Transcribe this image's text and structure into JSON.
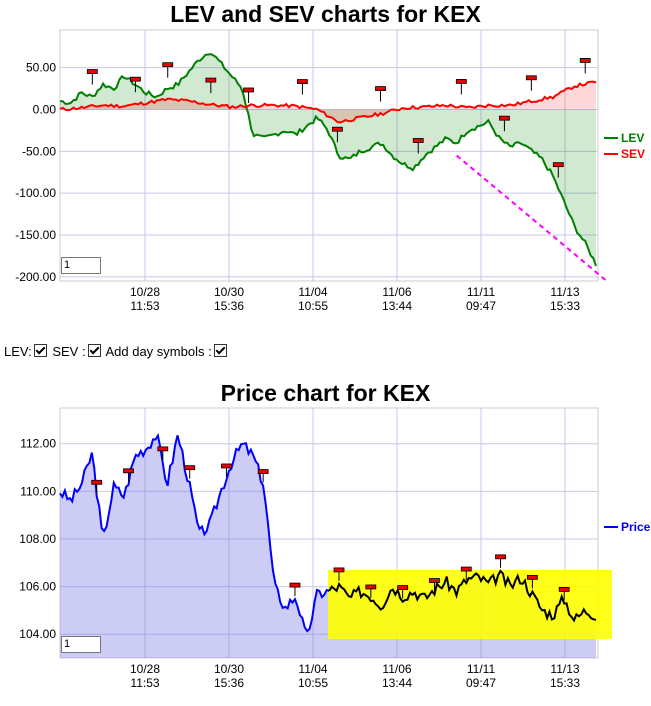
{
  "lev_title": "LEV and SEV charts for KEX",
  "price_title": "Price chart for KEX",
  "controls": {
    "lev_label": "LEV:",
    "sev_label": "SEV :",
    "day_label": "Add day symbols :"
  },
  "lev_zoom_value": "1",
  "price_zoom_value": "1",
  "colors": {
    "lev": "#008000",
    "sev": "#ff0000",
    "price": "#0000ff",
    "trend": "#ff00ff",
    "highlight": "#ffff00"
  },
  "chart_data": [
    {
      "type": "line",
      "title": "LEV and SEV charts for KEX",
      "ylim": [
        -205,
        95
      ],
      "y_ticks": [
        "50.00",
        "0.00",
        "-50.00",
        "-100.00",
        "-150.00",
        "-200.00"
      ],
      "y_tick_values": [
        50,
        0,
        -50,
        -100,
        -150,
        -200
      ],
      "x_ticks": [
        [
          "10/28",
          "11:53"
        ],
        [
          "10/30",
          "15:36"
        ],
        [
          "11/04",
          "10:55"
        ],
        [
          "11/06",
          "13:44"
        ],
        [
          "11/11",
          "09:47"
        ],
        [
          "11/13",
          "15:33"
        ]
      ],
      "legend": "right",
      "series": [
        {
          "name": "LEV",
          "x": [
            0,
            2,
            4,
            6,
            8,
            10,
            12,
            14,
            16,
            18,
            20,
            22,
            24,
            26,
            28,
            30,
            32,
            34,
            36,
            38,
            40,
            42,
            44,
            46,
            48,
            50,
            52,
            54,
            56,
            58,
            60,
            62,
            64,
            66,
            68,
            70,
            72,
            74,
            76,
            78,
            80,
            82,
            84,
            86,
            88,
            90,
            92,
            94,
            96,
            98,
            100
          ],
          "values": [
            10,
            8,
            20,
            15,
            30,
            25,
            40,
            30,
            20,
            15,
            25,
            30,
            45,
            60,
            70,
            55,
            40,
            25,
            -30,
            -35,
            -30,
            -25,
            -30,
            -20,
            -10,
            -25,
            -55,
            -60,
            -50,
            -45,
            -40,
            -55,
            -65,
            -70,
            -55,
            -45,
            -35,
            -40,
            -25,
            -20,
            -15,
            -35,
            -45,
            -40,
            -50,
            -60,
            -80,
            -110,
            -140,
            -160,
            -185
          ]
        },
        {
          "name": "SEV",
          "x": [
            0,
            4,
            8,
            12,
            16,
            20,
            24,
            28,
            32,
            36,
            40,
            44,
            48,
            52,
            56,
            60,
            64,
            68,
            72,
            76,
            80,
            84,
            88,
            92,
            96,
            100
          ],
          "values": [
            0,
            2,
            5,
            4,
            8,
            12,
            10,
            6,
            3,
            5,
            5,
            4,
            0,
            -15,
            -10,
            -5,
            2,
            3,
            5,
            2,
            5,
            5,
            10,
            15,
            28,
            33
          ]
        }
      ],
      "annotation": "dashed downward trendline on LEV"
    },
    {
      "type": "area",
      "title": "Price chart for KEX",
      "ylim": [
        103.0,
        113.5
      ],
      "y_ticks": [
        "112.00",
        "110.00",
        "108.00",
        "106.00",
        "104.00"
      ],
      "y_tick_values": [
        112,
        110,
        108,
        106,
        104
      ],
      "x_ticks": [
        [
          "10/28",
          "11:53"
        ],
        [
          "10/30",
          "15:36"
        ],
        [
          "11/04",
          "10:55"
        ],
        [
          "11/06",
          "13:44"
        ],
        [
          "11/11",
          "09:47"
        ],
        [
          "11/13",
          "15:33"
        ]
      ],
      "legend": "right",
      "series": [
        {
          "name": "Price",
          "x": [
            0,
            2,
            4,
            6,
            8,
            10,
            12,
            14,
            16,
            18,
            20,
            22,
            24,
            26,
            28,
            30,
            32,
            34,
            36,
            38,
            40,
            42,
            44,
            46,
            48,
            50,
            52,
            54,
            56,
            58,
            60,
            62,
            64,
            66,
            68,
            70,
            72,
            74,
            76,
            78,
            80,
            82,
            84,
            86,
            88,
            90,
            92,
            94,
            96,
            98,
            100
          ],
          "values": [
            110.0,
            109.6,
            110.3,
            111.6,
            107.9,
            110.2,
            109.8,
            111.5,
            111.8,
            112.4,
            110.3,
            112.4,
            110.4,
            108.2,
            108.6,
            110.0,
            111.2,
            112.0,
            111.5,
            110.3,
            106.0,
            105.1,
            105.6,
            103.8,
            105.7,
            105.8,
            106.0,
            105.5,
            105.8,
            105.6,
            105.2,
            106.0,
            105.6,
            105.8,
            105.5,
            105.9,
            106.2,
            105.8,
            106.3,
            106.4,
            106.1,
            106.5,
            106.0,
            106.4,
            105.7,
            105.0,
            104.8,
            105.5,
            104.6,
            105.0,
            104.8
          ]
        }
      ],
      "highlight_band": [
        103.8,
        106.7
      ]
    }
  ]
}
